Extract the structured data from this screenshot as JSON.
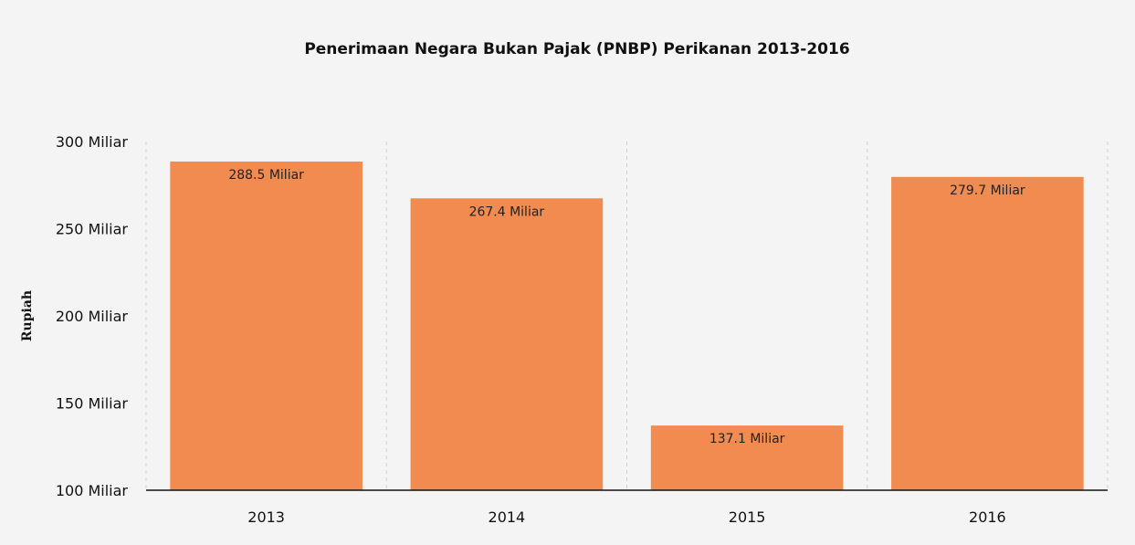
{
  "chart_data": {
    "type": "bar",
    "title": "Penerimaan Negara Bukan Pajak (PNBP) Perikanan 2013-2016",
    "xlabel": "",
    "ylabel": "Rupiah",
    "categories": [
      "2013",
      "2014",
      "2015",
      "2016"
    ],
    "values": [
      288.5,
      267.4,
      137.1,
      279.7
    ],
    "data_labels": [
      "288.5 Miliar",
      "267.4 Miliar",
      "137.1 Miliar",
      "279.7 Miliar"
    ],
    "ylim": [
      100,
      300
    ],
    "yticks": [
      100,
      150,
      200,
      250,
      300
    ],
    "ytick_labels": [
      "100 Miliar",
      "150 Miliar",
      "200 Miliar",
      "250 Miliar",
      "300 Miliar"
    ],
    "bar_color": "#f28b50",
    "grid": "vertical dashed",
    "legend": "none"
  }
}
